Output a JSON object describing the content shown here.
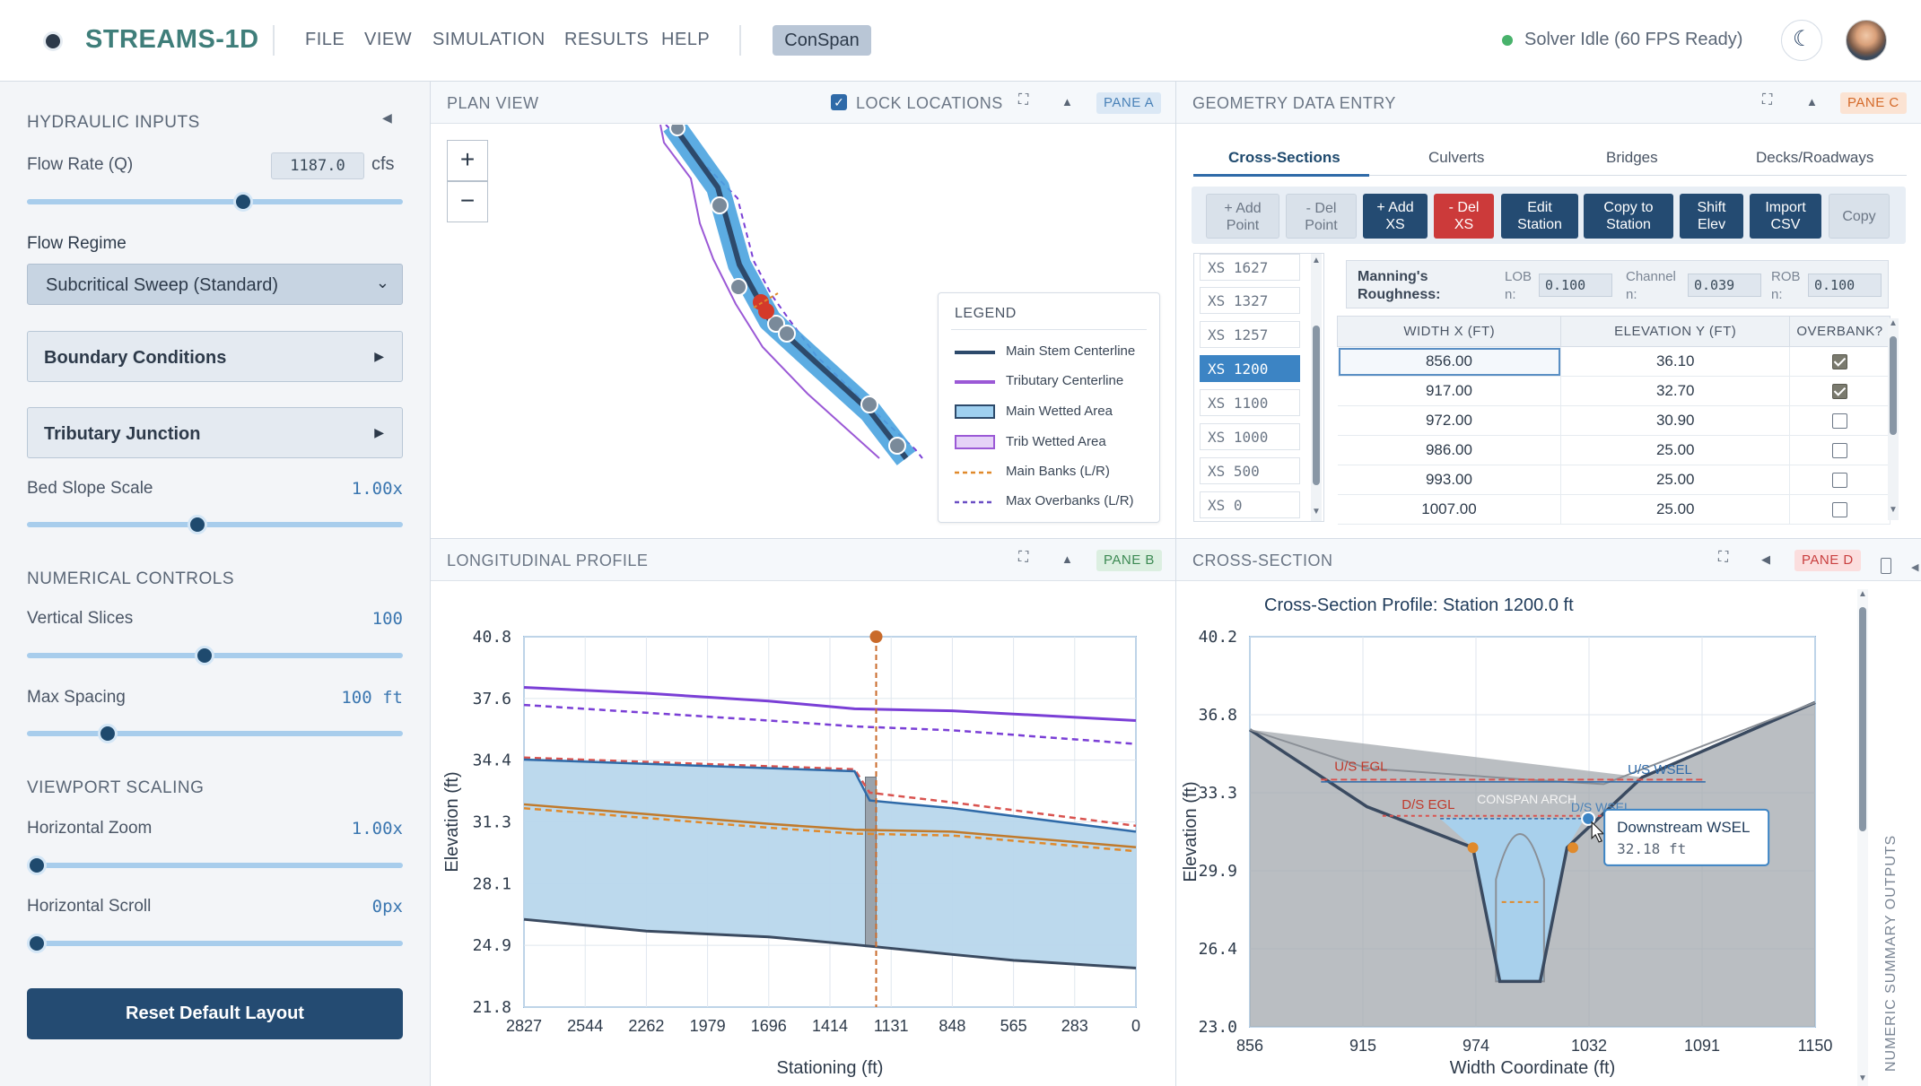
{
  "app": {
    "name": "STREAMS-1D",
    "mode_button": "ConSpan",
    "status": "Solver Idle (60 FPS Ready)",
    "status_color": "#48b26b"
  },
  "menu": [
    "FILE",
    "VIEW",
    "SIMULATION",
    "RESULTS",
    "HELP"
  ],
  "sidebar": {
    "hydraulic_title": "HYDRAULIC INPUTS",
    "flow_rate_label": "Flow Rate (Q)",
    "flow_rate_value": "1187.0",
    "flow_rate_unit": "cfs",
    "flow_rate_fraction": 0.58,
    "flow_regime_label": "Flow Regime",
    "flow_regime_value": "Subcritical Sweep (Standard)",
    "boundary_label": "Boundary Conditions",
    "junction_label": "Tributary Junction",
    "bed_slope_label": "Bed Slope Scale",
    "bed_slope_value": "1.00x",
    "bed_slope_fraction": 0.45,
    "numerical_title": "NUMERICAL CONTROLS",
    "slices_label": "Vertical Slices",
    "slices_value": "100",
    "slices_fraction": 0.47,
    "spacing_label": "Max Spacing",
    "spacing_value": "100 ft",
    "spacing_fraction": 0.2,
    "viewport_title": "VIEWPORT SCALING",
    "hzoom_label": "Horizontal Zoom",
    "hzoom_value": "1.00x",
    "hzoom_fraction": 0.0,
    "hscroll_label": "Horizontal Scroll",
    "hscroll_value": "0px",
    "hscroll_fraction": 0.0,
    "reset_label": "Reset Default Layout"
  },
  "pane_a": {
    "title": "PLAN VIEW",
    "tag": "PANE A",
    "lock_label": "LOCK LOCATIONS",
    "lock_checked": true,
    "zoom_in": "+",
    "zoom_out": "−",
    "legend_title": "LEGEND",
    "legend": [
      {
        "label": "Main Stem Centerline",
        "color": "#2d4a6b"
      },
      {
        "label": "Tributary Centerline",
        "color": "#9b59d6"
      },
      {
        "label": "Main Wetted Area",
        "color": "#4aa3df"
      },
      {
        "label": "Trib Wetted Area",
        "color": "#d7b8f3"
      },
      {
        "label": "Main Banks (L/R)",
        "color": "#e08a2c"
      },
      {
        "label": "Max Overbanks (L/R)",
        "color": "#6b4fc4"
      }
    ]
  },
  "pane_b": {
    "title": "LONGITUDINAL PROFILE",
    "tag": "PANE B"
  },
  "pane_c": {
    "title": "GEOMETRY DATA ENTRY",
    "tag": "PANE C",
    "tabs": [
      "Cross-Sections",
      "Culverts",
      "Bridges",
      "Decks/Roadways"
    ],
    "buttons": [
      "+ Add\nPoint",
      "- Del\nPoint",
      "+ Add\nXS",
      "- Del\nXS",
      "Edit\nStation",
      "Copy to\nStation",
      "Shift\nElev",
      "Import\nCSV",
      "Copy"
    ],
    "xs_list": [
      "XS 1627",
      "XS 1327",
      "XS 1257",
      "XS 1200",
      "XS 1100",
      "XS 1000",
      "XS 500",
      "XS 0"
    ],
    "xs_selected": "XS 1200",
    "manning_label": "Manning's Roughness:",
    "lob_label": "LOB n:",
    "lob_value": "0.100",
    "channel_label": "Channel n:",
    "channel_value": "0.039",
    "rob_label": "ROB n:",
    "rob_value": "0.100",
    "table_headers": [
      "WIDTH X (FT)",
      "ELEVATION Y (FT)",
      "OVERBANK?"
    ],
    "table_rows": [
      {
        "x": "856.00",
        "y": "36.10",
        "overbank": true
      },
      {
        "x": "917.00",
        "y": "32.70",
        "overbank": true
      },
      {
        "x": "972.00",
        "y": "30.90",
        "overbank": false
      },
      {
        "x": "986.00",
        "y": "25.00",
        "overbank": false
      },
      {
        "x": "993.00",
        "y": "25.00",
        "overbank": false
      },
      {
        "x": "1007.00",
        "y": "25.00",
        "overbank": false
      }
    ]
  },
  "pane_d": {
    "title": "CROSS-SECTION",
    "tag": "PANE D",
    "side_label": "NUMERIC SUMMARY OUTPUTS"
  },
  "chart_data": [
    {
      "type": "line",
      "xlabel": "Stationing (ft)",
      "ylabel": "Elevation (ft)",
      "xlim": [
        2827,
        0
      ],
      "ylim": [
        21.8,
        40.8
      ],
      "x_ticks": [
        "2827",
        "2544",
        "2262",
        "1979",
        "1696",
        "1414",
        "1131",
        "848",
        "565",
        "283",
        "0"
      ],
      "y_ticks": [
        "40.8",
        "37.6",
        "34.4",
        "31.3",
        "28.1",
        "24.9",
        "21.8"
      ],
      "marker_station": 1200,
      "series": [
        {
          "key": "overbank_max",
          "color": "#7a3fd6",
          "points": [
            [
              2827,
              38.2
            ],
            [
              2262,
              37.9
            ],
            [
              1696,
              37.5
            ],
            [
              1300,
              37.1
            ],
            [
              848,
              37.0
            ],
            [
              0,
              36.5
            ]
          ]
        },
        {
          "key": "overbank_dash",
          "color": "#7a3fd6",
          "dash": true,
          "points": [
            [
              2827,
              37.3
            ],
            [
              2262,
              36.9
            ],
            [
              1696,
              36.5
            ],
            [
              1300,
              36.2
            ],
            [
              848,
              36.0
            ],
            [
              0,
              35.3
            ]
          ]
        },
        {
          "key": "egl",
          "color": "#d9534f",
          "dash": true,
          "points": [
            [
              2827,
              34.6
            ],
            [
              1300,
              34.0
            ],
            [
              1230,
              32.8
            ],
            [
              848,
              32.3
            ],
            [
              0,
              31.1
            ]
          ]
        },
        {
          "key": "wsel",
          "color": "#2f6aa8",
          "points": [
            [
              2827,
              34.5
            ],
            [
              1300,
              33.9
            ],
            [
              1230,
              32.4
            ],
            [
              848,
              32.0
            ],
            [
              0,
              30.8
            ]
          ]
        },
        {
          "key": "banks",
          "color": "#c07a2c",
          "points": [
            [
              2827,
              32.2
            ],
            [
              2262,
              31.7
            ],
            [
              1696,
              31.2
            ],
            [
              1300,
              30.9
            ],
            [
              848,
              30.8
            ],
            [
              0,
              30.0
            ]
          ]
        },
        {
          "key": "banks_dash",
          "color": "#e08a2c",
          "dash": true,
          "points": [
            [
              2827,
              32.0
            ],
            [
              2262,
              31.5
            ],
            [
              1696,
              31.0
            ],
            [
              1300,
              30.7
            ],
            [
              848,
              30.6
            ],
            [
              0,
              29.8
            ]
          ]
        },
        {
          "key": "bed",
          "color": "#3a4a60",
          "points": [
            [
              2827,
              26.3
            ],
            [
              2262,
              25.7
            ],
            [
              1696,
              25.4
            ],
            [
              1300,
              25.0
            ],
            [
              848,
              24.5
            ],
            [
              565,
              24.2
            ],
            [
              0,
              23.8
            ]
          ]
        }
      ]
    },
    {
      "type": "area",
      "title": "Cross-Section Profile: Station 1200.0 ft",
      "xlabel": "Width Coordinate (ft)",
      "ylabel": "Elevation (ft)",
      "xlim": [
        856,
        1150
      ],
      "ylim": [
        23.0,
        40.2
      ],
      "x_ticks": [
        "856",
        "915",
        "974",
        "1032",
        "1091",
        "1150"
      ],
      "y_ticks": [
        "40.2",
        "36.8",
        "33.3",
        "29.9",
        "26.4",
        "23.0"
      ],
      "ground": [
        [
          856,
          36.1
        ],
        [
          917,
          32.7
        ],
        [
          972,
          30.9
        ],
        [
          986,
          25.0
        ],
        [
          1007,
          25.0
        ],
        [
          1021,
          30.9
        ],
        [
          1060,
          34.0
        ],
        [
          1150,
          37.3
        ]
      ],
      "us_egl": 33.9,
      "us_wsel": 33.8,
      "ds_egl": 32.3,
      "ds_wsel": 32.18,
      "labels": {
        "us_egl": "U/S EGL",
        "us_wsel": "U/S WSEL",
        "ds_egl": "D/S EGL",
        "ds_wsel": "D/S WSEL",
        "arch": "CONSPAN ARCH"
      },
      "tooltip": {
        "title": "Downstream WSEL",
        "value": "32.18 ft"
      }
    }
  ]
}
